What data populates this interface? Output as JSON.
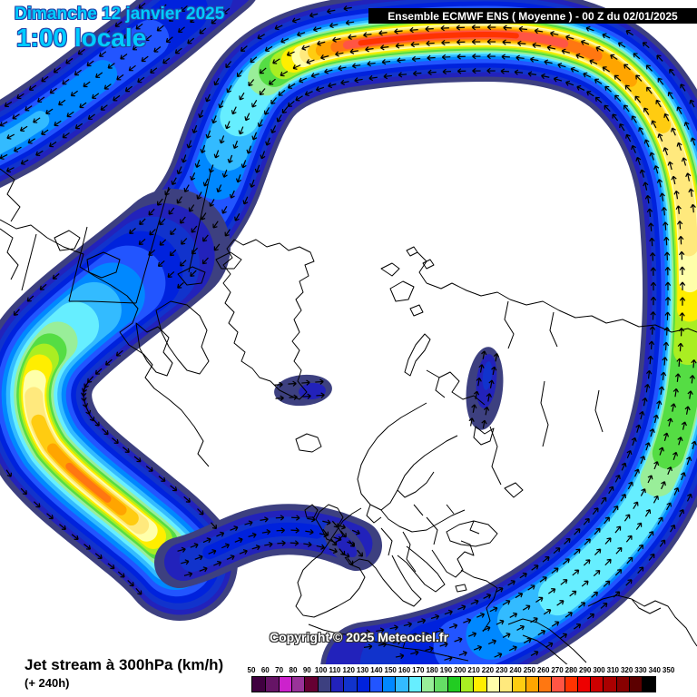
{
  "title_bar": {
    "text": "Ensemble ECMWF ENS  ( Moyenne )  -  00 Z du 02/01/2025",
    "bg": "#000000",
    "fg": "#ffffff"
  },
  "date_box": {
    "line1": "Dimanche 12 janvier 2025",
    "line2": "1:00 locale",
    "text_color": "#00ccff",
    "outline_color": "#2244aa"
  },
  "footer": {
    "product": "Jet stream à 300hPa (km/h)",
    "forecast_offset": "(+ 240h)"
  },
  "watermark": {
    "text": "Copyright © 2025 Meteociel.fr"
  },
  "legend": {
    "unit": "km/h",
    "values": [
      50,
      60,
      70,
      80,
      90,
      100,
      110,
      120,
      130,
      140,
      150,
      160,
      170,
      180,
      190,
      200,
      210,
      220,
      230,
      240,
      250,
      260,
      270,
      280,
      290,
      300,
      310,
      320,
      330,
      340,
      350
    ],
    "cell_colors": [
      "#400040",
      "#661466",
      "#cc22cc",
      "#993399",
      "#660033",
      "#3d4080",
      "#2222bb",
      "#1133cc",
      "#0022dd",
      "#2255ff",
      "#0088ff",
      "#33bbff",
      "#66eeff",
      "#99ee99",
      "#66dd66",
      "#22cc22",
      "#aaee22",
      "#ffee00",
      "#ffffaa",
      "#ffe97d",
      "#ffcc11",
      "#ffa500",
      "#ff7711",
      "#ff5544",
      "#ff3300",
      "#ee0000",
      "#cc0000",
      "#aa0000",
      "#880000",
      "#5c0000",
      "#000000"
    ]
  },
  "map": {
    "arrow_color": "#000000",
    "coast_color": "#000000",
    "weak_jet_color": "#3d4080"
  }
}
